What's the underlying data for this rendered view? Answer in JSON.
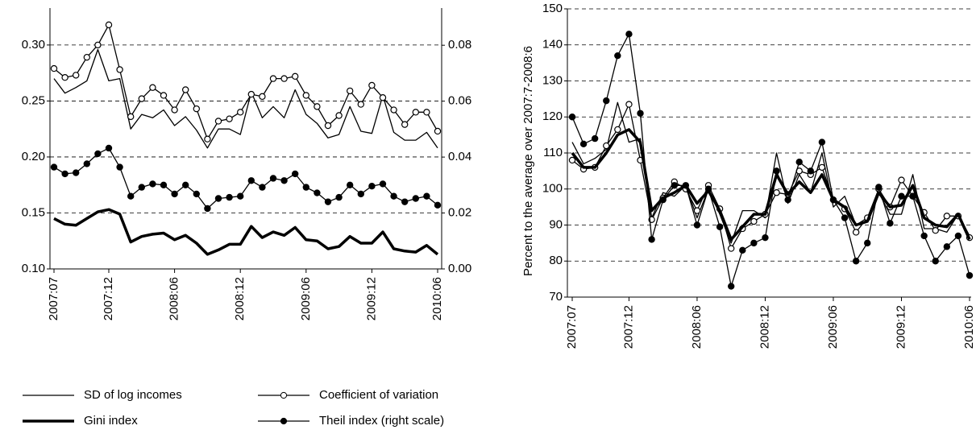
{
  "chart_data": [
    {
      "type": "line",
      "categories": [
        "2007:07",
        null,
        null,
        null,
        null,
        "2007:12",
        null,
        null,
        null,
        null,
        null,
        "2008:06",
        null,
        null,
        null,
        null,
        null,
        "2008:12",
        null,
        null,
        null,
        null,
        null,
        "2009:06",
        null,
        null,
        null,
        null,
        null,
        "2009:12",
        null,
        null,
        null,
        null,
        null,
        "2010:06"
      ],
      "ylim": [
        0.1,
        0.333
      ],
      "yticks": [
        {
          "value": 0.1,
          "label": "0.10"
        },
        0.15,
        {
          "value": 0.2,
          "label": "0.20"
        },
        0.25,
        {
          "value": 0.3,
          "label": "0.30"
        }
      ],
      "y2lim": [
        0,
        0.0933
      ],
      "y2ticks": [
        {
          "value": 0,
          "label": "0.00"
        },
        0.02,
        0.04,
        0.06,
        0.08
      ],
      "grid": true,
      "legend": "bottom",
      "series": [
        {
          "name": "SD of log incomes",
          "style": "thin",
          "color": "#000000",
          "values": [
            0.27,
            0.257,
            0.262,
            0.268,
            0.296,
            0.268,
            0.27,
            0.225,
            0.238,
            0.235,
            0.242,
            0.228,
            0.236,
            0.224,
            0.208,
            0.225,
            0.225,
            0.22,
            0.258,
            0.235,
            0.245,
            0.235,
            0.26,
            0.238,
            0.23,
            0.217,
            0.22,
            0.245,
            0.223,
            0.221,
            0.255,
            0.222,
            0.215,
            0.215,
            0.222,
            0.208
          ]
        },
        {
          "name": "Coefficient of variation",
          "style": "open",
          "color": "#000000",
          "values": [
            0.279,
            0.271,
            0.273,
            0.289,
            0.3,
            0.318,
            0.278,
            0.236,
            0.252,
            0.262,
            0.255,
            0.242,
            0.26,
            0.243,
            0.216,
            0.232,
            0.234,
            0.24,
            0.256,
            0.254,
            0.27,
            0.27,
            0.272,
            0.255,
            0.245,
            0.228,
            0.237,
            0.259,
            0.247,
            0.264,
            0.253,
            0.242,
            0.229,
            0.24,
            0.24,
            0.223
          ]
        },
        {
          "name": "Gini index",
          "style": "thick",
          "color": "#000000",
          "values": [
            0.145,
            0.14,
            0.139,
            0.145,
            0.151,
            0.153,
            0.149,
            0.124,
            0.129,
            0.131,
            0.132,
            0.126,
            0.13,
            0.123,
            0.113,
            0.117,
            0.122,
            0.122,
            0.138,
            0.128,
            0.133,
            0.13,
            0.137,
            0.126,
            0.125,
            0.118,
            0.12,
            0.129,
            0.123,
            0.123,
            0.133,
            0.118,
            0.116,
            0.115,
            0.121,
            0.113
          ]
        },
        {
          "name": "Theil index (right scale)",
          "style": "filled",
          "color": "#000000",
          "axis": "y2",
          "values": [
            0.0364,
            0.034,
            0.0344,
            0.0376,
            0.0412,
            0.0432,
            0.0364,
            0.026,
            0.0292,
            0.0304,
            0.03,
            0.0268,
            0.03,
            0.0268,
            0.0216,
            0.0252,
            0.0256,
            0.026,
            0.0316,
            0.0292,
            0.0324,
            0.0316,
            0.034,
            0.0292,
            0.0272,
            0.024,
            0.0256,
            0.03,
            0.0268,
            0.0296,
            0.0304,
            0.026,
            0.024,
            0.0252,
            0.026,
            0.0228
          ]
        }
      ]
    },
    {
      "type": "line",
      "y_label": "Percent to the average over 2007:7-2008:6",
      "categories": [
        "2007:07",
        null,
        null,
        null,
        null,
        "2007:12",
        null,
        null,
        null,
        null,
        null,
        "2008:06",
        null,
        null,
        null,
        null,
        null,
        "2008:12",
        null,
        null,
        null,
        null,
        null,
        "2009:06",
        null,
        null,
        null,
        null,
        null,
        "2009:12",
        null,
        null,
        null,
        null,
        null,
        "2010:06"
      ],
      "ylim": [
        70,
        150
      ],
      "yticks": [
        70,
        80,
        90,
        100,
        110,
        120,
        130,
        140,
        150
      ],
      "grid": true,
      "series": [
        {
          "style": "thin",
          "color": "#000000",
          "values": [
            113,
            107,
            108.5,
            111,
            124,
            113,
            114,
            92,
            99,
            98,
            101,
            92,
            100,
            93,
            85,
            94,
            94,
            92,
            110,
            96,
            104,
            99,
            110,
            95,
            98,
            90,
            92,
            99,
            93,
            93,
            104,
            89,
            89,
            88,
            93,
            87
          ]
        },
        {
          "style": "open",
          "color": "#000000",
          "values": [
            108,
            105.5,
            106,
            112,
            116.5,
            123.5,
            108,
            91.5,
            97.5,
            102,
            100,
            94,
            101,
            94.5,
            83.5,
            89,
            91,
            93,
            99,
            98.5,
            105,
            104,
            106,
            97,
            94.5,
            88,
            92,
            100,
            95,
            102.5,
            98,
            93.5,
            88.5,
            92.5,
            92.5,
            86.5
          ]
        },
        {
          "style": "thick",
          "color": "#000000",
          "values": [
            110,
            106,
            106,
            110,
            115,
            116.5,
            113,
            94,
            97.5,
            99,
            101,
            96,
            99.5,
            94,
            86,
            89.5,
            93,
            93,
            104,
            98.5,
            102,
            99,
            104,
            97,
            95,
            90,
            91,
            99,
            95,
            95.5,
            101,
            92,
            90,
            89.5,
            93,
            86
          ]
        },
        {
          "style": "filled",
          "color": "#000000",
          "values": [
            120,
            112.5,
            114,
            124.5,
            137,
            143,
            121,
            86,
            97,
            101,
            101,
            90,
            100,
            89.5,
            73,
            83,
            85,
            86.5,
            105,
            97,
            107.5,
            105,
            113,
            97,
            92,
            80,
            85,
            100.5,
            90.5,
            98,
            98,
            87,
            80,
            84,
            87,
            76
          ]
        }
      ]
    }
  ]
}
